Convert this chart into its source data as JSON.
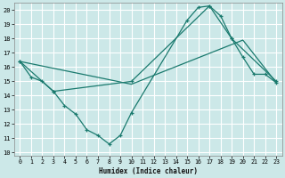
{
  "bg_color": "#cce8e8",
  "grid_color": "#ffffff",
  "line_color": "#1a7a6e",
  "xlabel": "Humidex (Indice chaleur)",
  "xlim": [
    -0.5,
    23.5
  ],
  "ylim": [
    9.8,
    20.5
  ],
  "yticks": [
    10,
    11,
    12,
    13,
    14,
    15,
    16,
    17,
    18,
    19,
    20
  ],
  "xticks": [
    0,
    1,
    2,
    3,
    4,
    5,
    6,
    7,
    8,
    9,
    10,
    11,
    12,
    13,
    14,
    15,
    16,
    17,
    18,
    19,
    20,
    21,
    22,
    23
  ],
  "line1_x": [
    0,
    1,
    2,
    3,
    4,
    5,
    6,
    7,
    8,
    9,
    10,
    15,
    16,
    17,
    18,
    19,
    20,
    21,
    22,
    23
  ],
  "line1_y": [
    16.4,
    15.3,
    15.0,
    14.3,
    13.3,
    12.7,
    11.6,
    11.2,
    10.6,
    11.2,
    12.8,
    19.3,
    20.2,
    20.3,
    19.6,
    18.0,
    16.7,
    15.5,
    15.5,
    14.9
  ],
  "line2_x": [
    0,
    3,
    10,
    17,
    19,
    23
  ],
  "line2_y": [
    16.4,
    14.3,
    15.0,
    20.3,
    18.0,
    15.0
  ],
  "line3_x": [
    0,
    10,
    20,
    23
  ],
  "line3_y": [
    16.4,
    14.8,
    17.9,
    14.9
  ]
}
